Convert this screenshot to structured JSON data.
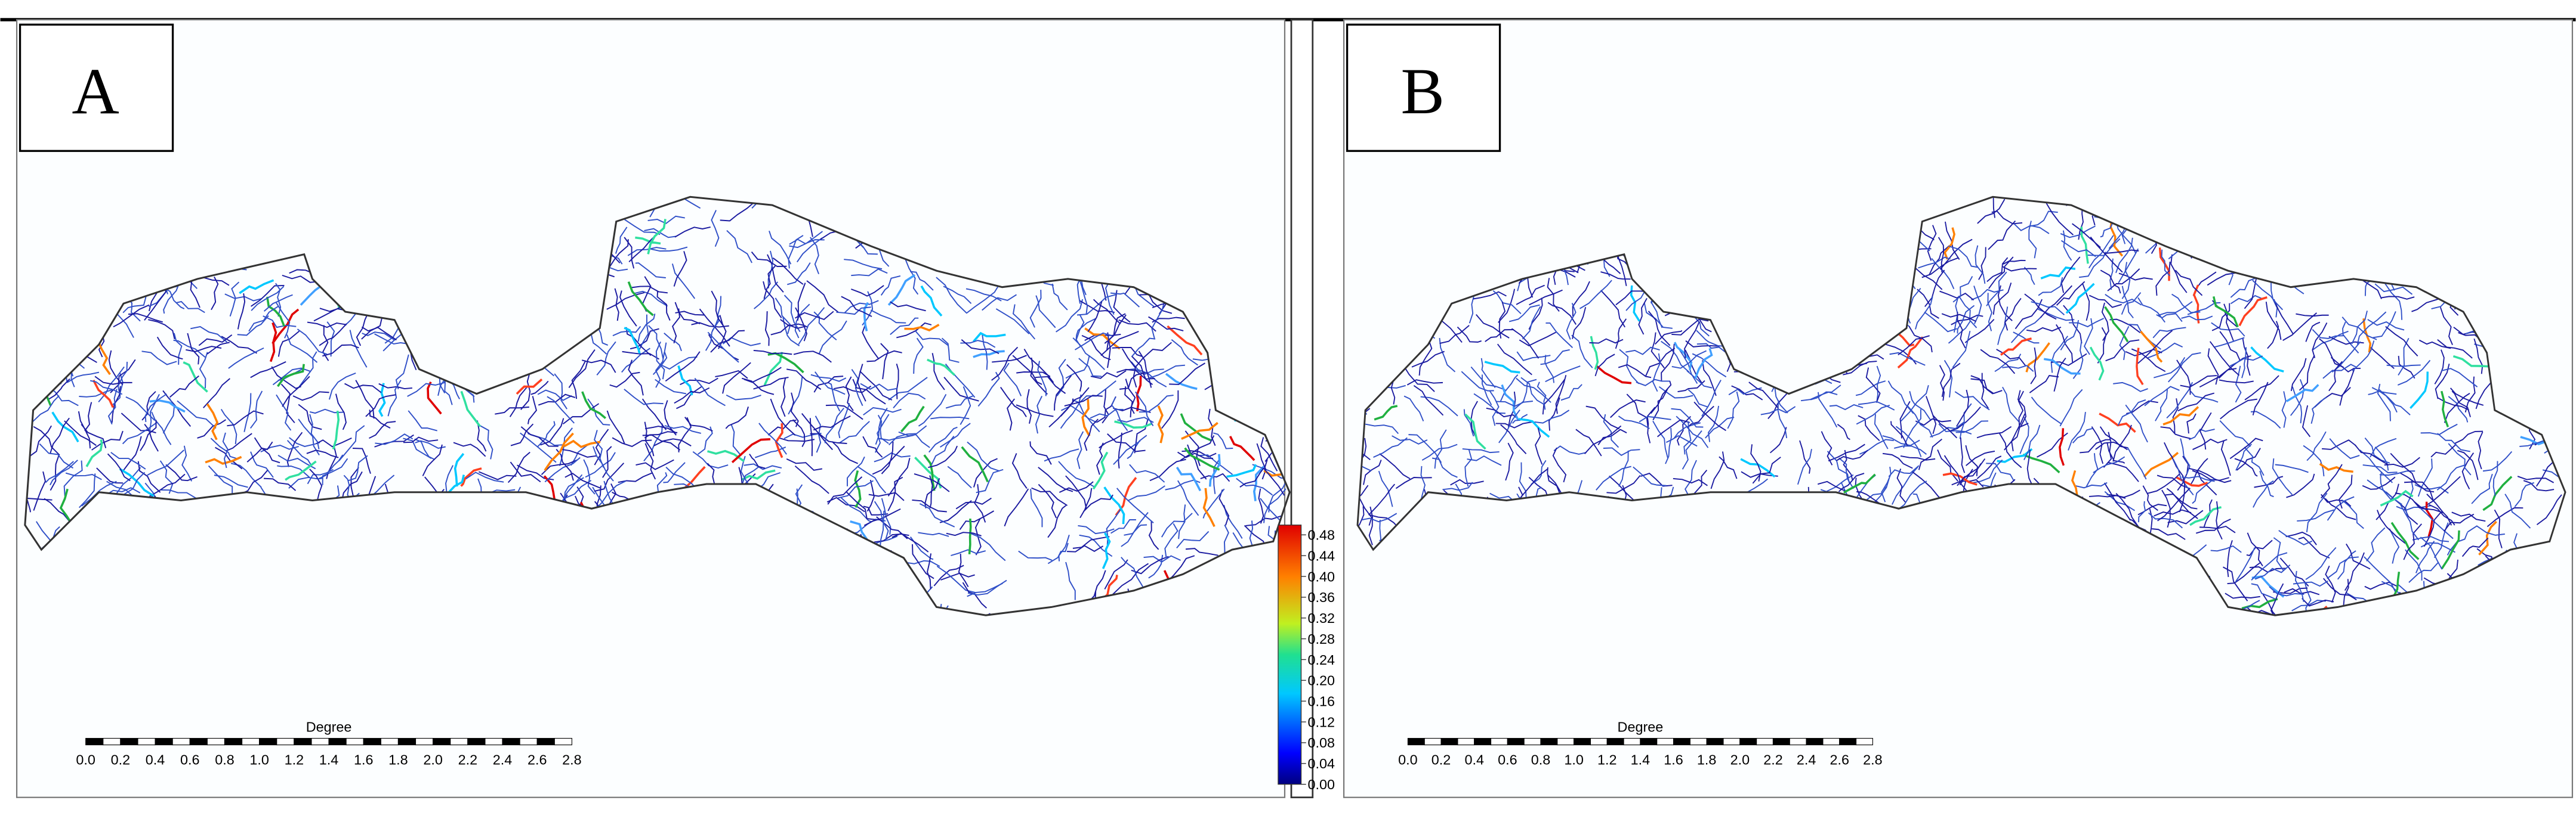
{
  "panels": [
    {
      "label": "A"
    },
    {
      "label": "B"
    }
  ],
  "scale_bar": {
    "title": "Degree",
    "ticks": [
      "0.0",
      "0.2",
      "0.4",
      "0.6",
      "0.8",
      "1.0",
      "1.2",
      "1.4",
      "1.6",
      "1.8",
      "2.0",
      "2.2",
      "2.4",
      "2.6",
      "2.8"
    ]
  },
  "colorbar": {
    "ticks": [
      "0.00",
      "0.04",
      "0.08",
      "0.12",
      "0.16",
      "0.20",
      "0.24",
      "0.28",
      "0.32",
      "0.36",
      "0.40",
      "0.44",
      "0.48"
    ]
  }
}
